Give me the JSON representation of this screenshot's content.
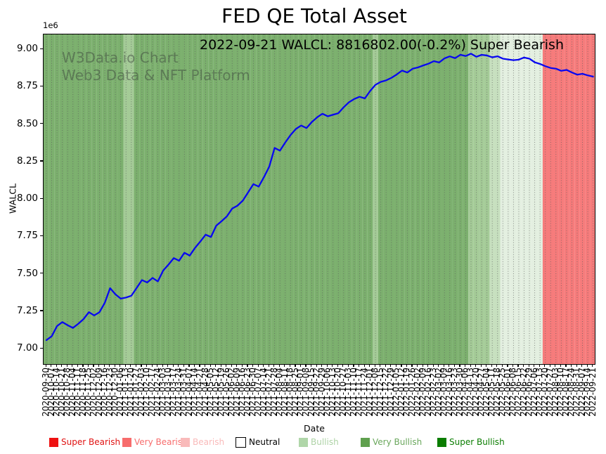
{
  "title": "FED QE Total Asset",
  "annotation": "2022-09-21 WALCL: 8816802.00(-0.2%) Super Bearish",
  "watermark": {
    "line1": "W3Data.io Chart",
    "line2": "Web3 Data & NFT Platform"
  },
  "axes": {
    "y_label": "WALCL",
    "x_label": "Date",
    "y_offset_label": "1e6",
    "y_tick_labels": [
      "7.00",
      "7.25",
      "7.50",
      "7.75",
      "8.00",
      "8.25",
      "8.50",
      "8.75",
      "9.00"
    ],
    "y_tick_values": [
      7000000,
      7250000,
      7500000,
      7750000,
      8000000,
      8250000,
      8500000,
      8750000,
      9000000
    ]
  },
  "legend": {
    "items": [
      {
        "label": "Super Bearish",
        "color": "#ee1111",
        "text_color": "#e01212",
        "border": "none"
      },
      {
        "label": "Very Bearish",
        "color": "#f76c6c",
        "text_color": "#f76c6c",
        "border": "none"
      },
      {
        "label": "Bearish",
        "color": "#f9baba",
        "text_color": "#f9baba",
        "border": "none"
      },
      {
        "label": "Neutral",
        "color": "#ffffff",
        "text_color": "#000000",
        "border": "#000000"
      },
      {
        "label": "Bullish",
        "color": "#b0d6a9",
        "text_color": "#aed3a6",
        "border": "none"
      },
      {
        "label": "Very Bullish",
        "color": "#5fa04e",
        "text_color": "#6aa75c",
        "border": "none"
      },
      {
        "label": "Super Bullish",
        "color": "#0a7d00",
        "text_color": "#0a7d00",
        "border": "none"
      }
    ]
  },
  "chart_data": {
    "type": "line",
    "title": "FED QE Total Asset",
    "xlabel": "Date",
    "ylabel": "WALCL",
    "y_axis_multiplier": "1e6",
    "ylim": [
      6897000,
      9098000
    ],
    "grid": "vertical dotted line per weekly x tick",
    "legend_position": "below x axis",
    "line_color": "#0808f0",
    "x": [
      "2020-09-30",
      "2020-10-07",
      "2020-10-14",
      "2020-10-21",
      "2020-10-28",
      "2020-11-04",
      "2020-11-11",
      "2020-11-18",
      "2020-11-25",
      "2020-12-02",
      "2020-12-09",
      "2020-12-16",
      "2020-12-23",
      "2020-12-30",
      "2021-01-06",
      "2021-01-13",
      "2021-01-20",
      "2021-01-27",
      "2021-02-03",
      "2021-02-10",
      "2021-02-17",
      "2021-02-24",
      "2021-03-03",
      "2021-03-10",
      "2021-03-17",
      "2021-03-24",
      "2021-03-31",
      "2021-04-07",
      "2021-04-14",
      "2021-04-21",
      "2021-04-28",
      "2021-05-05",
      "2021-05-12",
      "2021-05-19",
      "2021-05-26",
      "2021-06-02",
      "2021-06-09",
      "2021-06-16",
      "2021-06-23",
      "2021-06-30",
      "2021-07-07",
      "2021-07-14",
      "2021-07-21",
      "2021-07-28",
      "2021-08-04",
      "2021-08-11",
      "2021-08-18",
      "2021-08-25",
      "2021-09-01",
      "2021-09-08",
      "2021-09-15",
      "2021-09-22",
      "2021-09-29",
      "2021-10-06",
      "2021-10-13",
      "2021-10-20",
      "2021-10-27",
      "2021-11-03",
      "2021-11-10",
      "2021-11-17",
      "2021-11-24",
      "2021-12-01",
      "2021-12-08",
      "2021-12-15",
      "2021-12-22",
      "2021-12-29",
      "2022-01-05",
      "2022-01-12",
      "2022-01-19",
      "2022-01-26",
      "2022-02-02",
      "2022-02-09",
      "2022-02-16",
      "2022-02-23",
      "2022-03-02",
      "2022-03-09",
      "2022-03-16",
      "2022-03-23",
      "2022-03-30",
      "2022-04-06",
      "2022-04-13",
      "2022-04-20",
      "2022-04-27",
      "2022-05-04",
      "2022-05-11",
      "2022-05-18",
      "2022-05-25",
      "2022-06-01",
      "2022-06-08",
      "2022-06-15",
      "2022-06-22",
      "2022-06-29",
      "2022-07-06",
      "2022-07-13",
      "2022-07-20",
      "2022-07-27",
      "2022-08-03",
      "2022-08-10",
      "2022-08-17",
      "2022-08-24",
      "2022-08-31",
      "2022-09-07",
      "2022-09-14",
      "2022-09-21"
    ],
    "series": [
      {
        "name": "WALCL",
        "color": "#0808f0",
        "values": [
          7056343,
          7082297,
          7150137,
          7177218,
          7156139,
          7138197,
          7165461,
          7197223,
          7243459,
          7221437,
          7243126,
          7305959,
          7403829,
          7362731,
          7334107,
          7341098,
          7352856,
          7404926,
          7457731,
          7441753,
          7472127,
          7448818,
          7520887,
          7561022,
          7604390,
          7586931,
          7640035,
          7621107,
          7672574,
          7715211,
          7760845,
          7745374,
          7820931,
          7851036,
          7883277,
          7935258,
          7954735,
          7988537,
          8043584,
          8098544,
          8082156,
          8146287,
          8216791,
          8340464,
          8322147,
          8376723,
          8426537,
          8467219,
          8490336,
          8472872,
          8513211,
          8544795,
          8568929,
          8551767,
          8562306,
          8572044,
          8611953,
          8645741,
          8667423,
          8682118,
          8671376,
          8721235,
          8762461,
          8781502,
          8791841,
          8808732,
          8831125,
          8857433,
          8844060,
          8869481,
          8878219,
          8891354,
          8903413,
          8920072,
          8911461,
          8938677,
          8952036,
          8940218,
          8962811,
          8954276,
          8970124,
          8949373,
          8962386,
          8958022,
          8945735,
          8952669,
          8936874,
          8931419,
          8926707,
          8930316,
          8944521,
          8936833,
          8912516,
          8901472,
          8886514,
          8874536,
          8869927,
          8855381,
          8861759,
          8844837,
          8830043,
          8835752,
          8824941,
          8816802
        ]
      }
    ],
    "bands": {
      "palette": {
        "VB": {
          "name": "very-bullish-band",
          "color": "#7cb06e"
        },
        "B": {
          "name": "bullish-band",
          "color": "#a4cb97"
        },
        "BW": {
          "name": "weak-bullish-band",
          "color": "#c7e0bf"
        },
        "N": {
          "name": "neutral-pale-band",
          "color": "#e3efe0"
        },
        "R": {
          "name": "very-bearish-band",
          "color": "#f67b7b"
        }
      },
      "weekly": [
        "VB",
        "VB",
        "VB",
        "VB",
        "VB",
        "VB",
        "VB",
        "VB",
        "VB",
        "VB",
        "VB",
        "VB",
        "VB",
        "VB",
        "VB",
        "B",
        "B",
        "VB",
        "VB",
        "VB",
        "VB",
        "VB",
        "VB",
        "VB",
        "VB",
        "VB",
        "VB",
        "VB",
        "VB",
        "VB",
        "VB",
        "VB",
        "VB",
        "VB",
        "VB",
        "VB",
        "VB",
        "VB",
        "VB",
        "VB",
        "VB",
        "VB",
        "VB",
        "VB",
        "VB",
        "VB",
        "VB",
        "VB",
        "VB",
        "VB",
        "VB",
        "VB",
        "VB",
        "VB",
        "VB",
        "VB",
        "VB",
        "VB",
        "VB",
        "VB",
        "VB",
        "VB",
        "B",
        "VB",
        "VB",
        "VB",
        "VB",
        "VB",
        "VB",
        "VB",
        "VB",
        "VB",
        "VB",
        "VB",
        "VB",
        "VB",
        "VB",
        "VB",
        "VB",
        "VB",
        "B",
        "B",
        "B",
        "B",
        "BW",
        "BW",
        "N",
        "N",
        "N",
        "N",
        "N",
        "N",
        "N",
        "N",
        "R",
        "R",
        "R",
        "R",
        "R",
        "R",
        "R",
        "R",
        "R",
        "R"
      ]
    },
    "last_point": {
      "date": "2022-09-21",
      "value": 8816802.0,
      "change_pct": -0.2,
      "signal": "Super Bearish"
    }
  }
}
